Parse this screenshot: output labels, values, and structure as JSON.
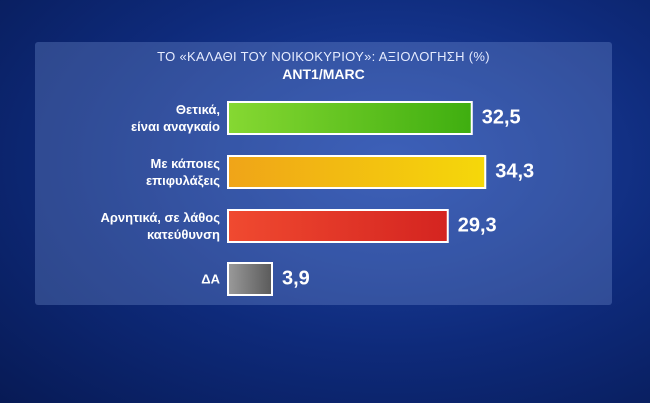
{
  "chart_data": {
    "type": "hbar",
    "title": "ΤΟ «ΚΑΛΑΘΙ ΤΟΥ ΝΟΙΚΟΚΥΡΙΟΥ»: ΑΞΙΟΛΟΓΗΣΗ (%)",
    "subtitle": "ANT1/MARC",
    "categories": [
      "Θετικά,\nείναι αναγκαίο",
      "Με κάποιες\nεπιφυλάξεις",
      "Αρνητικά, σε λάθος\nκατεύθυνση",
      "ΔΑ"
    ],
    "values": [
      32.5,
      34.3,
      29.3,
      3.9
    ],
    "value_labels": [
      "32,5",
      "34,3",
      "29,3",
      "3,9"
    ],
    "colors": [
      [
        "#86d832",
        "#3fae10"
      ],
      [
        "#f0a418",
        "#f5d80a"
      ],
      [
        "#f04a30",
        "#d42420"
      ],
      [
        "#9a9a9a",
        "#5a5a5a"
      ]
    ]
  }
}
